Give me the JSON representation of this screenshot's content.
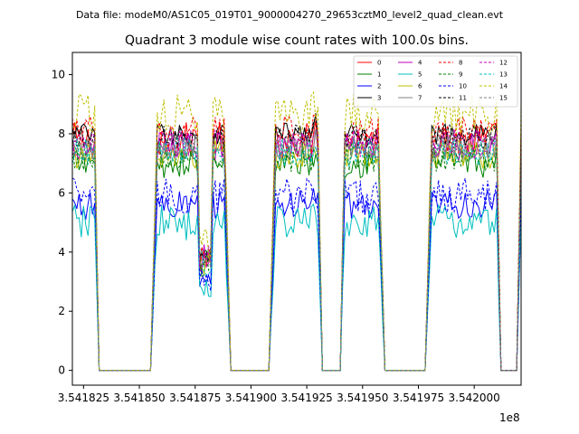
{
  "figure": {
    "suptitle": "Data file: modeM0/AS1C05_019T01_9000004270_29653cztM0_level2_quad_clean.evt",
    "title": "Quadrant 3 module wise count rates with 100.0s bins.",
    "x_offset_label": "1e8"
  },
  "chart_data": {
    "type": "line",
    "title": "Quadrant 3 module wise count rates with 100.0s bins.",
    "xlabel": "",
    "ylabel": "",
    "x_tick_labels": [
      "3.541825",
      "3.541850",
      "3.541875",
      "3.541900",
      "3.541925",
      "3.541950",
      "3.541975",
      "3.542000"
    ],
    "x_ticks": [
      354182500,
      354185000,
      354187500,
      354190000,
      354192500,
      354195000,
      354197500,
      354200000
    ],
    "y_tick_labels": [
      "0",
      "2",
      "4",
      "6",
      "8",
      "10"
    ],
    "y_ticks": [
      0,
      2,
      4,
      6,
      8,
      10
    ],
    "xlim": [
      354182000,
      354202100
    ],
    "ylim": [
      -0.5,
      10.75
    ],
    "legend_placement": "top-right",
    "x_segments": [
      {
        "start": 354182000,
        "end": 354183000,
        "level": "on"
      },
      {
        "start": 354183000,
        "end": 354183200,
        "level": "drop"
      },
      {
        "start": 354183200,
        "end": 354185500,
        "level": "zero"
      },
      {
        "start": 354185500,
        "end": 354185800,
        "level": "rise"
      },
      {
        "start": 354185800,
        "end": 354188800,
        "level": "on"
      },
      {
        "start": 354188800,
        "end": 354189100,
        "level": "drop"
      },
      {
        "start": 354189100,
        "end": 354190800,
        "level": "zero"
      },
      {
        "start": 354190800,
        "end": 354191100,
        "level": "rise"
      },
      {
        "start": 354191100,
        "end": 354193000,
        "level": "on"
      },
      {
        "start": 354193000,
        "end": 354193200,
        "level": "drop"
      },
      {
        "start": 354193200,
        "end": 354194000,
        "level": "zero"
      },
      {
        "start": 354194000,
        "end": 354194200,
        "level": "rise"
      },
      {
        "start": 354194200,
        "end": 354195700,
        "level": "on"
      },
      {
        "start": 354195700,
        "end": 354196000,
        "level": "drop"
      },
      {
        "start": 354196000,
        "end": 354197800,
        "level": "zero"
      },
      {
        "start": 354197800,
        "end": 354198100,
        "level": "rise"
      },
      {
        "start": 354198100,
        "end": 354201000,
        "level": "on"
      },
      {
        "start": 354201000,
        "end": 354201200,
        "level": "drop"
      },
      {
        "start": 354201200,
        "end": 354201900,
        "level": "zero"
      },
      {
        "start": 354201900,
        "end": 354202100,
        "level": "rise"
      }
    ],
    "series": [
      {
        "name": "0",
        "color": "#ff0000",
        "dash": "solid",
        "base": 7.8,
        "noise": 0.6
      },
      {
        "name": "1",
        "color": "#008000",
        "dash": "solid",
        "base": 7.0,
        "noise": 0.5
      },
      {
        "name": "2",
        "color": "#0000ff",
        "dash": "solid",
        "base": 5.6,
        "noise": 0.5
      },
      {
        "name": "3",
        "color": "#000000",
        "dash": "solid",
        "base": 8.0,
        "noise": 0.4
      },
      {
        "name": "4",
        "color": "#bf00bf",
        "dash": "solid",
        "base": 7.6,
        "noise": 0.5
      },
      {
        "name": "5",
        "color": "#00bfbf",
        "dash": "solid",
        "base": 5.0,
        "noise": 0.6
      },
      {
        "name": "6",
        "color": "#bfbf00",
        "dash": "solid",
        "base": 7.3,
        "noise": 0.5
      },
      {
        "name": "7",
        "color": "#808080",
        "dash": "solid",
        "base": 7.5,
        "noise": 0.4
      },
      {
        "name": "8",
        "color": "#ff0000",
        "dash": "dashed",
        "base": 8.1,
        "noise": 0.5
      },
      {
        "name": "9",
        "color": "#008000",
        "dash": "dashed",
        "base": 7.2,
        "noise": 0.5
      },
      {
        "name": "10",
        "color": "#0000ff",
        "dash": "dashed",
        "base": 5.9,
        "noise": 0.6
      },
      {
        "name": "11",
        "color": "#000000",
        "dash": "dashed",
        "base": 7.9,
        "noise": 0.4
      },
      {
        "name": "12",
        "color": "#bf00bf",
        "dash": "dashed",
        "base": 7.7,
        "noise": 0.5
      },
      {
        "name": "13",
        "color": "#00bfbf",
        "dash": "dashed",
        "base": 7.4,
        "noise": 0.5
      },
      {
        "name": "14",
        "color": "#bfbf00",
        "dash": "dashed",
        "base": 8.7,
        "noise": 0.7
      },
      {
        "name": "15",
        "color": "#808080",
        "dash": "dashed",
        "base": 7.6,
        "noise": 0.4
      }
    ]
  }
}
